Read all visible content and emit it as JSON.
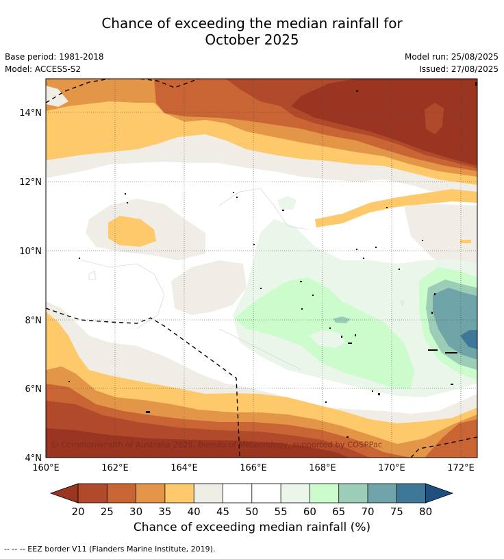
{
  "title_line1": "Chance of exceeding the median rainfall for",
  "title_line2": "October 2025",
  "meta": {
    "base_period": "Base period: 1981-2018",
    "model": "Model: ACCESS-S2",
    "model_run": "Model run: 25/08/2025",
    "issued": "Issued: 27/08/2025"
  },
  "map": {
    "lat_range": [
      4,
      15
    ],
    "lon_range": [
      160,
      172.5
    ],
    "lat_ticks": [
      "14°N",
      "12°N",
      "10°N",
      "8°N",
      "6°N",
      "4°N"
    ],
    "lon_ticks": [
      "160°E",
      "162°E",
      "164°E",
      "166°E",
      "168°E",
      "170°E",
      "172°E"
    ],
    "copyright": "© Commonwealth of Australia 2025, Bureau of Meteorology, supported by COSPPac",
    "grid": true
  },
  "colorbar": {
    "label": "Chance of exceeding median rainfall (%)",
    "ticks": [
      "20",
      "25",
      "30",
      "35",
      "40",
      "45",
      "50",
      "55",
      "60",
      "65",
      "70",
      "75",
      "80"
    ],
    "colors": {
      "below_20": "#9a3522",
      "20-25": "#b04a2a",
      "25-30": "#c96534",
      "30-35": "#e39548",
      "35-40": "#fdc96a",
      "40-45": "#f0ece6",
      "45-50": "#ffffff",
      "50-55": "#ffffff",
      "55-60": "#eaf6ea",
      "60-65": "#ccfccc",
      "65-70": "#9ccdb6",
      "70-75": "#6fa5a8",
      "75-80": "#3f7798",
      "above_80": "#1d4f80"
    }
  },
  "footnote": "--  --  -- EEZ border V11 (Flanders Marine Institute, 2019)."
}
